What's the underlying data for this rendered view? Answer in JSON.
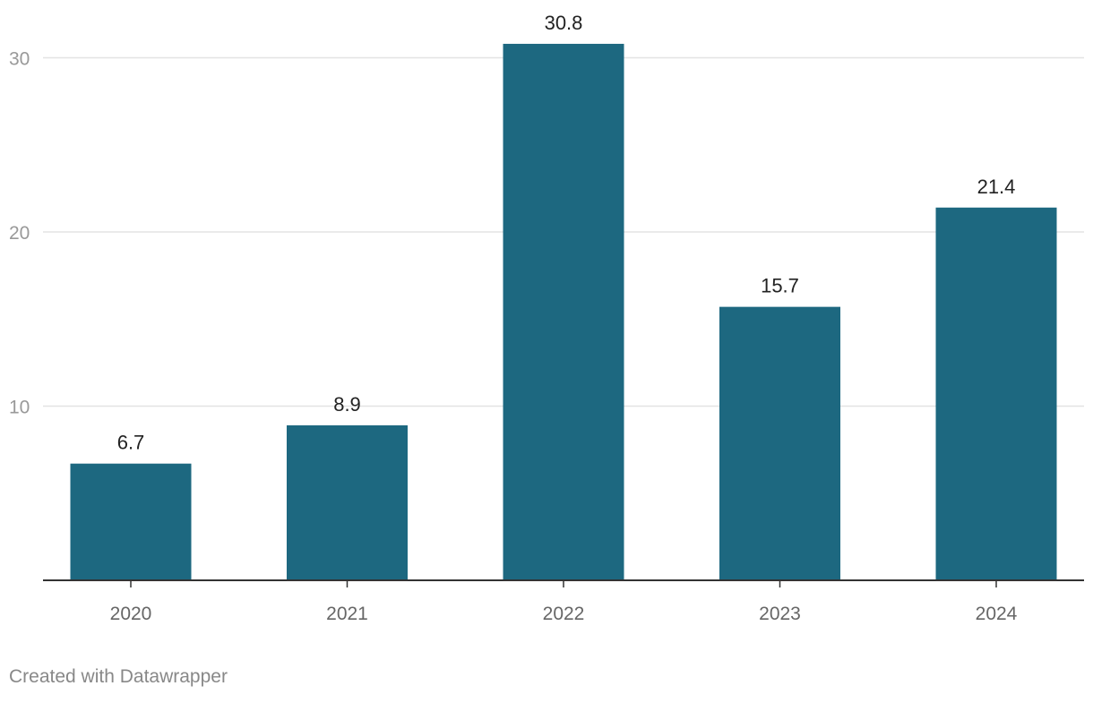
{
  "chart_data": {
    "type": "bar",
    "title": "",
    "xlabel": "",
    "ylabel": "",
    "categories": [
      "2020",
      "2021",
      "2022",
      "2023",
      "2024"
    ],
    "values": [
      6.7,
      8.9,
      30.8,
      15.7,
      21.4
    ],
    "value_labels": [
      "6.7",
      "8.9",
      "30.8",
      "15.7",
      "21.4"
    ],
    "ylim": [
      0,
      32
    ],
    "yticks": [
      10,
      20,
      30
    ],
    "ytick_labels": [
      "10",
      "20",
      "30"
    ],
    "grid": true,
    "legend": "none",
    "bar_color": "#1d6880",
    "grid_color": "#e3e3e3",
    "axis_color": "#333333",
    "tick_label_color": "#999999",
    "category_label_color": "#666666",
    "value_label_color": "#222222"
  },
  "footer": {
    "credit": "Created with Datawrapper"
  }
}
